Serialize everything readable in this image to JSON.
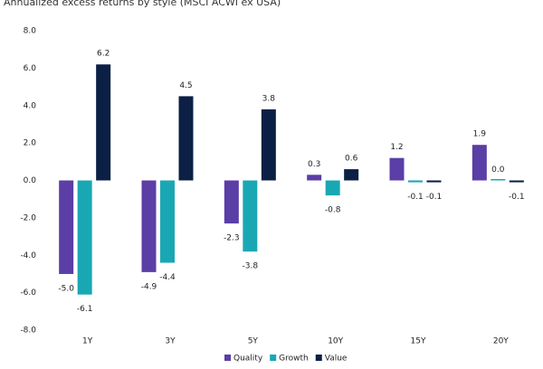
{
  "chart_data": {
    "type": "bar",
    "title": "Annualized excess returns by style (MSCI ACWI ex USA)",
    "categories": [
      "1Y",
      "3Y",
      "5Y",
      "10Y",
      "15Y",
      "20Y"
    ],
    "series": [
      {
        "name": "Quality",
        "color": "#5b3ea6",
        "values": [
          -5.0,
          -4.9,
          -2.3,
          0.3,
          1.2,
          1.9
        ],
        "value_labels": [
          "-5.0",
          "-4.9",
          "-2.3",
          "0.3",
          "1.2",
          "1.9"
        ]
      },
      {
        "name": "Growth",
        "color": "#1aa7b4",
        "values": [
          -6.1,
          -4.4,
          -3.8,
          -0.8,
          -0.1,
          0.0
        ],
        "value_labels": [
          "-6.1",
          "-4.4",
          "-3.8",
          "-0.8",
          "-0.1",
          "0.0"
        ]
      },
      {
        "name": "Value",
        "color": "#0c1f45",
        "values": [
          6.2,
          4.5,
          3.8,
          0.6,
          -0.1,
          -0.1
        ],
        "value_labels": [
          "6.2",
          "4.5",
          "3.8",
          "0.6",
          "-0.1",
          "-0.1"
        ]
      }
    ],
    "ylim": [
      -8,
      8
    ],
    "yticks": [
      {
        "value": 8,
        "label": "8.0"
      },
      {
        "value": 6,
        "label": "6.0"
      },
      {
        "value": 4,
        "label": "4.0"
      },
      {
        "value": 2,
        "label": "2.0"
      },
      {
        "value": 0,
        "label": "0.0"
      },
      {
        "value": -2,
        "label": "-2.0"
      },
      {
        "value": -4,
        "label": "-4.0"
      },
      {
        "value": -6,
        "label": "-6.0"
      },
      {
        "value": -8,
        "label": "-8.0"
      }
    ],
    "legend": "bottom"
  }
}
